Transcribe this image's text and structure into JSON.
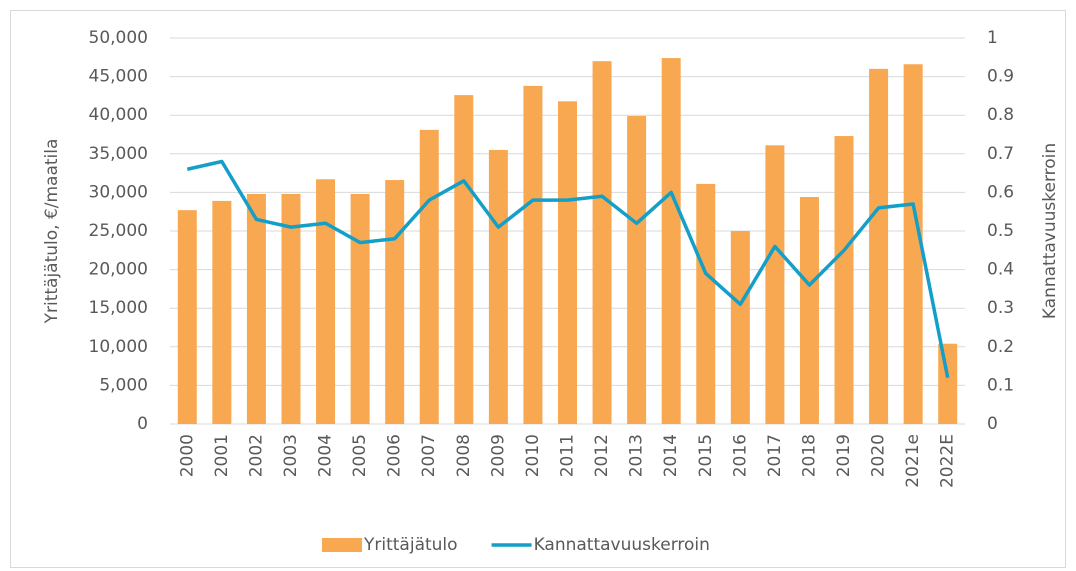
{
  "chart_data": {
    "type": "bar_line",
    "categories": [
      "2000",
      "2001",
      "2002",
      "2003",
      "2004",
      "2005",
      "2006",
      "2007",
      "2008",
      "2009",
      "2010",
      "2011",
      "2012",
      "2013",
      "2014",
      "2015",
      "2016",
      "2017",
      "2018",
      "2019",
      "2020",
      "2021e",
      "2022E"
    ],
    "series": [
      {
        "name": "Yrittäjätulo",
        "type": "bar",
        "color": "#f8a851",
        "axis": "y",
        "values": [
          27700,
          28900,
          29800,
          29800,
          31700,
          29800,
          31600,
          38100,
          42600,
          35500,
          43800,
          41800,
          47000,
          39900,
          47400,
          31100,
          25000,
          36100,
          29400,
          37300,
          46000,
          46600,
          10400
        ]
      },
      {
        "name": "Kannattavuuskerroin",
        "type": "line",
        "color": "#139fc8",
        "axis": "y2",
        "values": [
          0.66,
          0.68,
          0.53,
          0.51,
          0.52,
          0.47,
          0.48,
          0.58,
          0.63,
          0.51,
          0.58,
          0.58,
          0.59,
          0.52,
          0.6,
          0.39,
          0.31,
          0.46,
          0.36,
          0.45,
          0.56,
          0.57,
          0.12
        ]
      }
    ],
    "ylabel": "Yrittäjätulo, €/maatila",
    "y2label": "Kannattavuuskerroin",
    "ylim": [
      0,
      50000
    ],
    "yticks": [
      0,
      {
        "value": 5000,
        "label": "5,000"
      },
      {
        "value": 10000,
        "label": "10,000"
      },
      {
        "value": 15000,
        "label": "15,000"
      },
      {
        "value": 20000,
        "label": "20,000"
      },
      {
        "value": 25000,
        "label": "25,000"
      },
      {
        "value": 30000,
        "label": "30,000"
      },
      {
        "value": 35000,
        "label": "35,000"
      },
      {
        "value": 40000,
        "label": "40,000"
      },
      {
        "value": 45000,
        "label": "45,000"
      },
      {
        "value": 50000,
        "label": "50,000"
      }
    ],
    "y2lim": [
      0,
      1
    ],
    "y2ticks": [
      0,
      0.1,
      0.2,
      0.3,
      0.4,
      0.5,
      0.6,
      0.7,
      0.8,
      0.9,
      1
    ],
    "grid": true,
    "legend": "bottom"
  }
}
